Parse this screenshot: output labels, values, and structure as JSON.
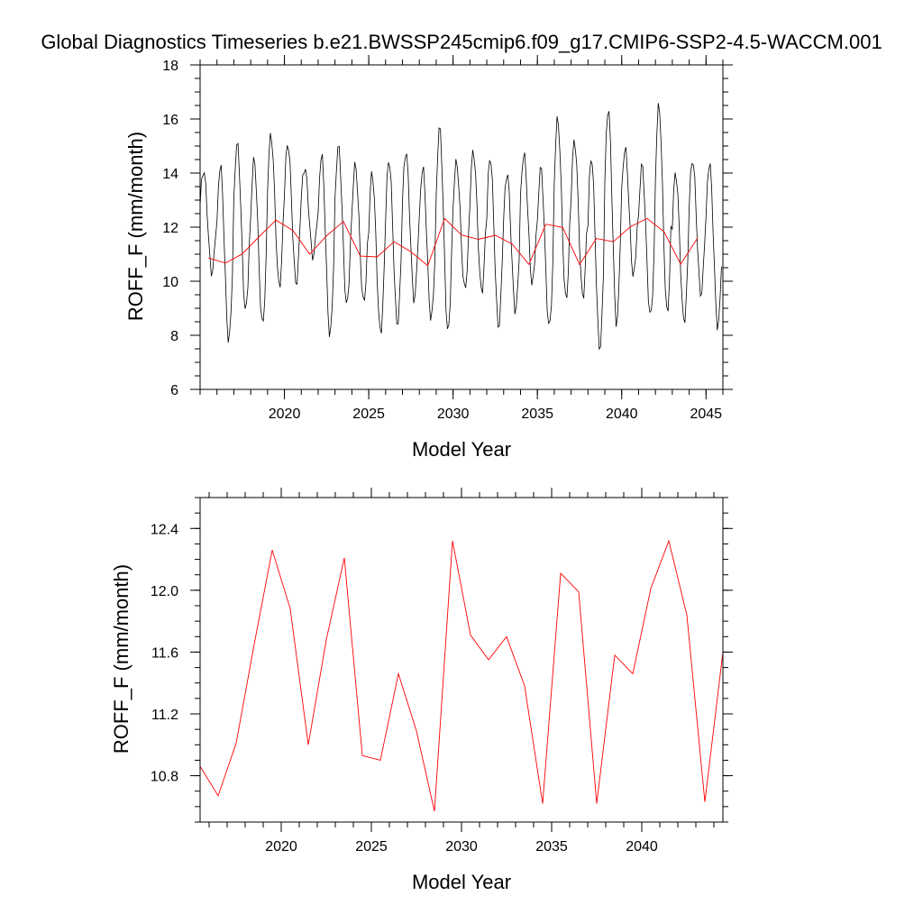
{
  "title": "Global Diagnostics Timeseries b.e21.BWSSP245cmip6.f09_g17.CMIP6-SSP2-4.5-WACCM.001",
  "colors": {
    "monthly": "#000000",
    "annual": "#ff0000"
  },
  "chart_data": [
    {
      "type": "line",
      "xlabel": "Model Year",
      "ylabel": "ROFF_F (mm/month)",
      "xlim": [
        2015.0,
        2046.0
      ],
      "ylim": [
        6,
        18
      ],
      "x_ticks": [
        2020,
        2025,
        2030,
        2035,
        2040,
        2045
      ],
      "y_ticks": [
        6,
        8,
        10,
        12,
        14,
        16,
        18
      ],
      "x_minor_step": 1,
      "y_minor_step": 0.5,
      "grid": false,
      "series": [
        {
          "kind": "monthly",
          "color": "#000000",
          "x_start": 2015.0,
          "x_step": 0.0833333,
          "annual_max": [
            14.1,
            14.3,
            15.1,
            14.5,
            15.4,
            15.1,
            14.2,
            14.7,
            15.0,
            14.3,
            14.0,
            14.5,
            14.8,
            14.2,
            15.7,
            14.4,
            14.8,
            14.6,
            14.0,
            14.7,
            14.2,
            16.0,
            15.2,
            14.6,
            16.4,
            14.9,
            14.3,
            16.5,
            14.0,
            14.5,
            14.4
          ],
          "annual_min": [
            10.3,
            7.8,
            8.9,
            8.4,
            9.8,
            9.9,
            10.9,
            8.0,
            9.1,
            9.2,
            8.1,
            8.4,
            9.3,
            8.6,
            8.1,
            9.7,
            9.6,
            8.3,
            8.9,
            9.9,
            8.3,
            9.3,
            9.4,
            7.5,
            8.4,
            10.2,
            8.7,
            8.8,
            8.5,
            9.5,
            8.3
          ],
          "peak_phase": 0.2,
          "trough_phase": 0.7
        },
        {
          "kind": "annual",
          "color": "#ff0000",
          "x": [
            2015.5,
            2016.5,
            2017.5,
            2018.5,
            2019.5,
            2020.5,
            2021.5,
            2022.5,
            2023.5,
            2024.5,
            2025.5,
            2026.5,
            2027.5,
            2028.5,
            2029.5,
            2030.5,
            2031.5,
            2032.5,
            2033.5,
            2034.5,
            2035.5,
            2036.5,
            2037.5,
            2038.5,
            2039.5,
            2040.5,
            2041.5,
            2042.5,
            2043.5,
            2044.5
          ],
          "values": [
            10.86,
            10.67,
            11.01,
            11.65,
            12.26,
            11.88,
            11.0,
            11.68,
            12.21,
            10.93,
            10.9,
            11.46,
            11.09,
            10.57,
            12.32,
            11.71,
            11.55,
            11.7,
            11.38,
            10.62,
            12.11,
            11.99,
            10.62,
            11.58,
            11.46,
            12.01,
            12.32,
            11.84,
            10.63,
            11.6
          ]
        }
      ]
    },
    {
      "type": "line",
      "xlabel": "Model Year",
      "ylabel": "ROFF_F (mm/month)",
      "xlim": [
        2015.5,
        2044.5
      ],
      "ylim": [
        10.5,
        12.6
      ],
      "x_ticks": [
        2020,
        2025,
        2030,
        2035,
        2040
      ],
      "y_ticks": [
        10.8,
        11.2,
        11.6,
        12.0,
        12.4
      ],
      "y_tick_labels": [
        "10.8",
        "11.2",
        "11.6",
        "12.0",
        "12.4"
      ],
      "x_minor_step": 1,
      "y_minor_step": 0.1,
      "grid": false,
      "series": [
        {
          "kind": "annual",
          "color": "#ff0000",
          "x": [
            2015.5,
            2016.5,
            2017.5,
            2018.5,
            2019.5,
            2020.5,
            2021.5,
            2022.5,
            2023.5,
            2024.5,
            2025.5,
            2026.5,
            2027.5,
            2028.5,
            2029.5,
            2030.5,
            2031.5,
            2032.5,
            2033.5,
            2034.5,
            2035.5,
            2036.5,
            2037.5,
            2038.5,
            2039.5,
            2040.5,
            2041.5,
            2042.5,
            2043.5,
            2044.5
          ],
          "values": [
            10.86,
            10.67,
            11.01,
            11.65,
            12.26,
            11.88,
            11.0,
            11.68,
            12.21,
            10.93,
            10.9,
            11.46,
            11.09,
            10.57,
            12.32,
            11.71,
            11.55,
            11.7,
            11.38,
            10.62,
            12.11,
            11.99,
            10.62,
            11.58,
            11.46,
            12.01,
            12.32,
            11.84,
            10.63,
            11.6
          ]
        }
      ]
    }
  ]
}
